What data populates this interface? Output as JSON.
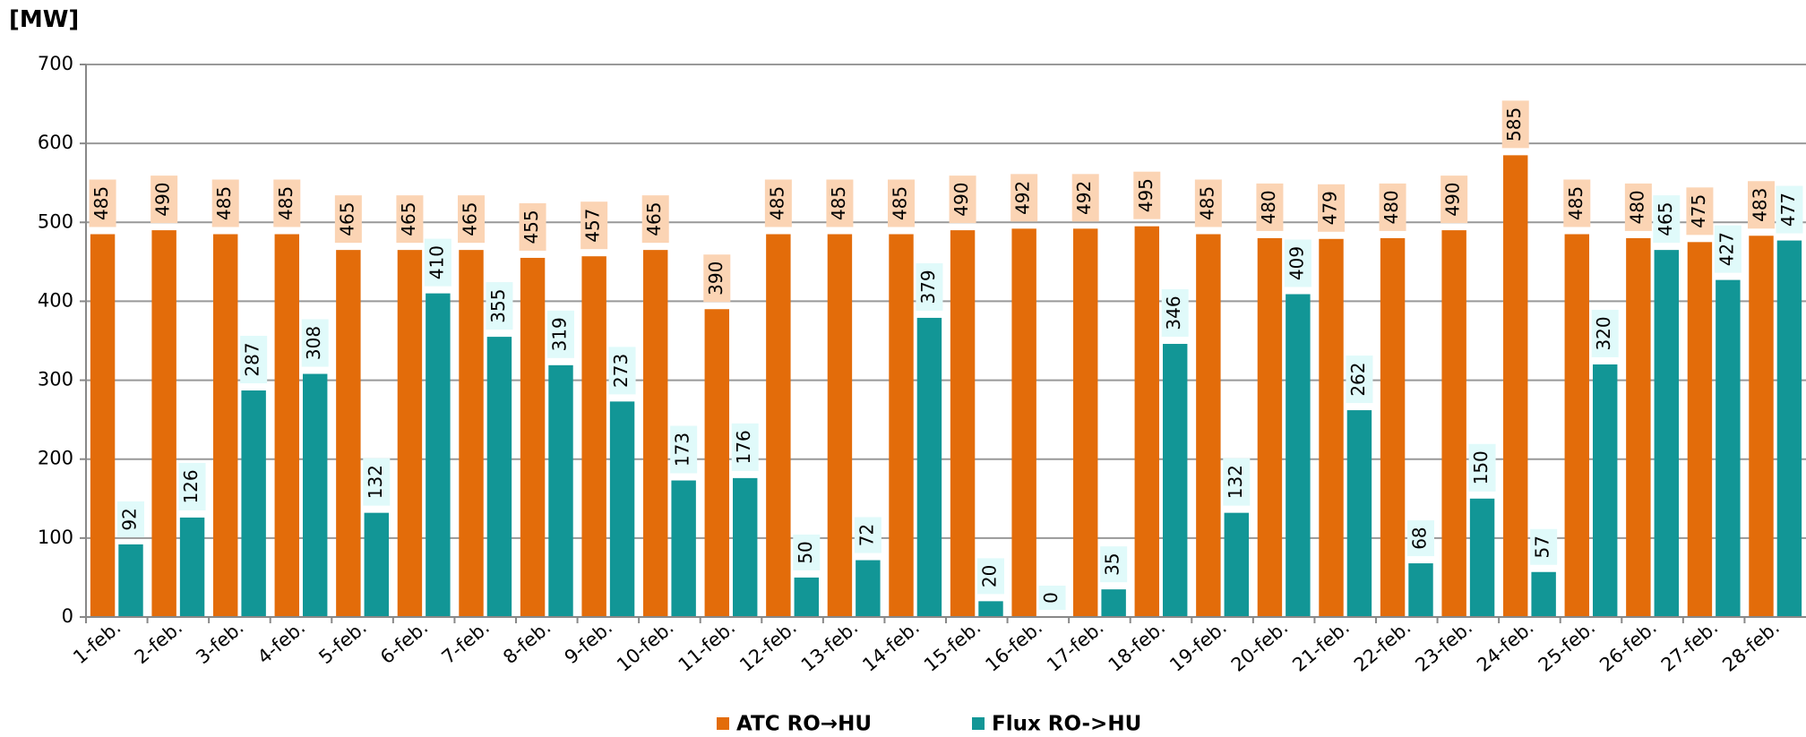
{
  "chart_data": {
    "type": "bar",
    "y_label": "[MW]",
    "categories": [
      "1-feb.",
      "2-feb.",
      "3-feb.",
      "4-feb.",
      "5-feb.",
      "6-feb.",
      "7-feb.",
      "8-feb.",
      "9-feb.",
      "10-feb.",
      "11-feb.",
      "12-feb.",
      "13-feb.",
      "14-feb.",
      "15-feb.",
      "16-feb.",
      "17-feb.",
      "18-feb.",
      "19-feb.",
      "20-feb.",
      "21-feb.",
      "22-feb.",
      "23-feb.",
      "24-feb.",
      "25-feb.",
      "26-feb.",
      "27-feb.",
      "28-feb."
    ],
    "series": [
      {
        "name": "ATC RO→HU",
        "color": "#e36c0a",
        "label_color": "#fbd4b4",
        "values": [
          485,
          490,
          485,
          485,
          465,
          465,
          465,
          455,
          457,
          465,
          390,
          485,
          485,
          485,
          490,
          492,
          492,
          495,
          485,
          480,
          479,
          480,
          490,
          585,
          485,
          480,
          475,
          483
        ]
      },
      {
        "name": "Flux RO->HU",
        "color": "#129696",
        "label_color": "#e0fafa",
        "values": [
          92,
          126,
          287,
          308,
          132,
          410,
          355,
          319,
          273,
          173,
          176,
          50,
          72,
          379,
          20,
          0,
          35,
          346,
          132,
          409,
          262,
          68,
          150,
          57,
          320,
          465,
          427,
          477
        ]
      }
    ],
    "ylim": [
      0,
      700
    ],
    "yticks": [
      0,
      100,
      200,
      300,
      400,
      500,
      600,
      700
    ],
    "grid": true
  }
}
